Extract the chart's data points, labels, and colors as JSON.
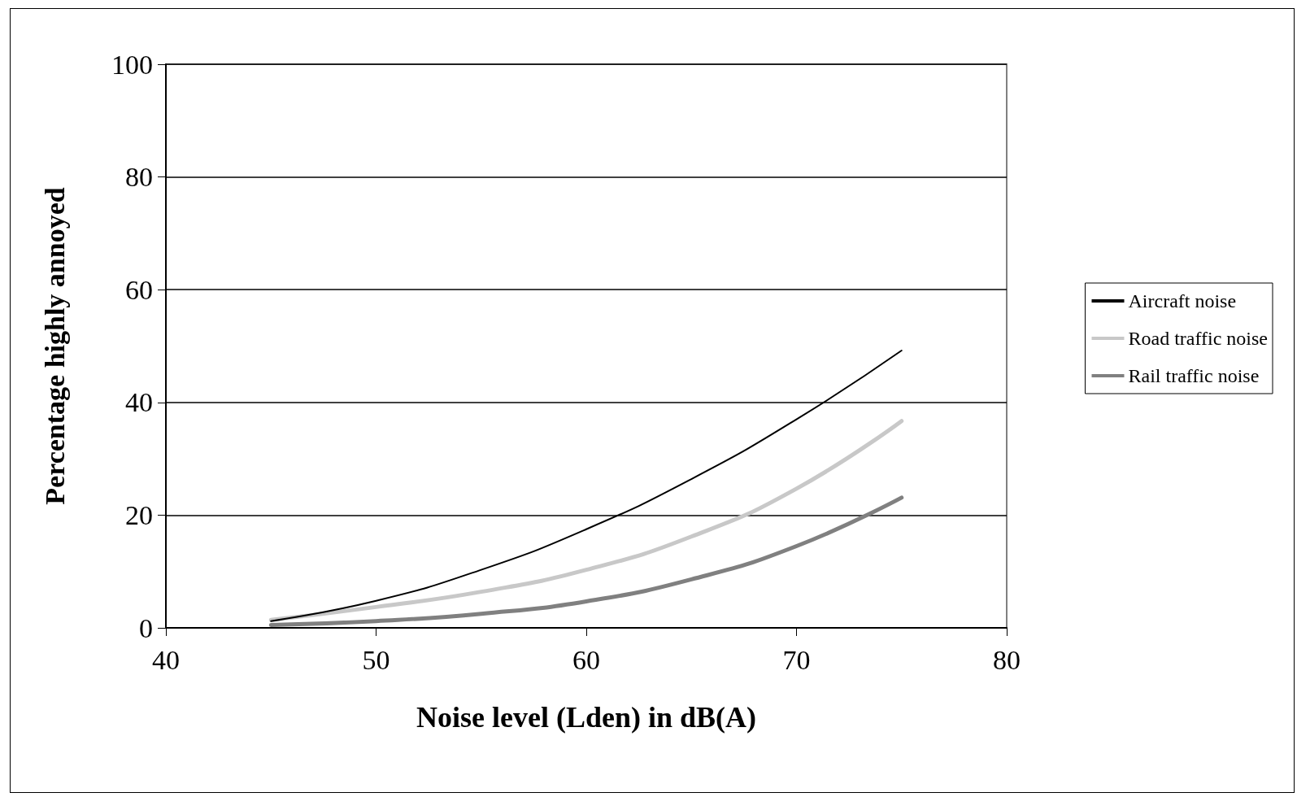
{
  "chart_data": {
    "type": "line",
    "xlabel": "Noise level (Lden) in dB(A)",
    "ylabel": "Percentage highly annoyed",
    "xlim": [
      40,
      80
    ],
    "xticks": [
      40,
      50,
      60,
      70,
      80
    ],
    "ylim": [
      0,
      100
    ],
    "yticks": [
      0,
      20,
      40,
      60,
      80,
      100
    ],
    "grid": "y",
    "legend": "right",
    "marker": "none",
    "line_style": "solid",
    "series": [
      {
        "name": "Aircraft noise",
        "color": "#000000",
        "x": [
          45,
          50,
          55,
          60,
          65,
          70,
          75
        ],
        "values": [
          1.2,
          4.8,
          10.3,
          17.5,
          26.4,
          37.0,
          49.2
        ]
      },
      {
        "name": "Road traffic noise",
        "color": "#c8c8c8",
        "x": [
          45,
          50,
          55,
          60,
          65,
          70,
          75
        ],
        "values": [
          1.4,
          3.7,
          6.4,
          10.3,
          16.2,
          24.7,
          36.7
        ]
      },
      {
        "name": "Rail traffic noise",
        "color": "#808080",
        "x": [
          45,
          50,
          55,
          60,
          65,
          70,
          75
        ],
        "values": [
          0.5,
          1.2,
          2.5,
          4.7,
          8.6,
          14.5,
          23.1
        ]
      }
    ]
  }
}
